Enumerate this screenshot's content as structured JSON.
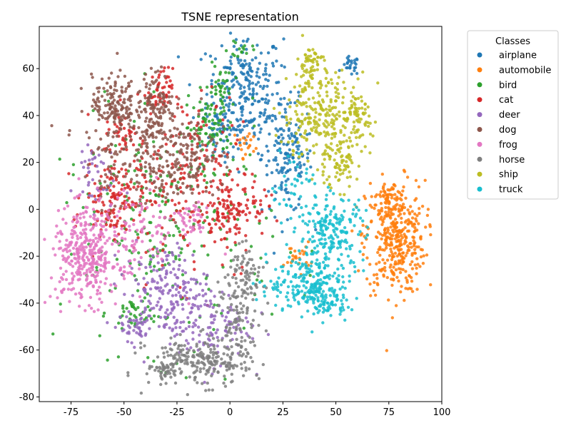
{
  "chart_data": {
    "type": "scatter",
    "title": "TSNE representation",
    "xlabel": "",
    "ylabel": "",
    "xlim": [
      -90,
      100
    ],
    "ylim": [
      -82,
      78
    ],
    "xticks": [
      -75,
      -50,
      -25,
      0,
      25,
      50,
      75,
      100
    ],
    "yticks": [
      -80,
      -60,
      -40,
      -20,
      0,
      20,
      40,
      60
    ],
    "grid": false,
    "legend": {
      "title": "Classes",
      "placement": "outside-top-right"
    },
    "series": [
      {
        "name": "airplane",
        "color": "#1f77b4",
        "clusters": [
          {
            "cx": 7,
            "cy": 50,
            "sx": 9,
            "sy": 13,
            "n": 260
          },
          {
            "cx": 27,
            "cy": 22,
            "sx": 6,
            "sy": 12,
            "n": 150
          },
          {
            "cx": 57,
            "cy": 61,
            "sx": 2,
            "sy": 2,
            "n": 25
          },
          {
            "cx": -3,
            "cy": 33,
            "sx": 5,
            "sy": 6,
            "n": 40
          }
        ]
      },
      {
        "name": "automobile",
        "color": "#ff7f0e",
        "clusters": [
          {
            "cx": 78,
            "cy": -12,
            "sx": 7,
            "sy": 12,
            "n": 400
          },
          {
            "cx": 75,
            "cy": 5,
            "sx": 3,
            "sy": 3,
            "n": 30
          },
          {
            "cx": 32,
            "cy": -20,
            "sx": 3,
            "sy": 3,
            "n": 25
          },
          {
            "cx": 8,
            "cy": 28,
            "sx": 3,
            "sy": 3,
            "n": 20
          }
        ]
      },
      {
        "name": "bird",
        "color": "#2ca02c",
        "clusters": [
          {
            "cx": -5,
            "cy": 50,
            "sx": 3,
            "sy": 5,
            "n": 40
          },
          {
            "cx": -10,
            "cy": 35,
            "sx": 6,
            "sy": 6,
            "n": 70
          },
          {
            "cx": -30,
            "cy": -10,
            "sx": 25,
            "sy": 25,
            "n": 260
          },
          {
            "cx": -45,
            "cy": -45,
            "sx": 5,
            "sy": 4,
            "n": 35
          },
          {
            "cx": 5,
            "cy": 68,
            "sx": 3,
            "sy": 2,
            "n": 15
          }
        ]
      },
      {
        "name": "cat",
        "color": "#d62728",
        "clusters": [
          {
            "cx": -55,
            "cy": 5,
            "sx": 7,
            "sy": 8,
            "n": 140
          },
          {
            "cx": -33,
            "cy": 50,
            "sx": 3,
            "sy": 5,
            "n": 50
          },
          {
            "cx": -15,
            "cy": 10,
            "sx": 15,
            "sy": 20,
            "n": 220
          },
          {
            "cx": -50,
            "cy": 32,
            "sx": 5,
            "sy": 4,
            "n": 40
          },
          {
            "cx": 3,
            "cy": 0,
            "sx": 7,
            "sy": 6,
            "n": 80
          }
        ]
      },
      {
        "name": "deer",
        "color": "#9467bd",
        "clusters": [
          {
            "cx": -30,
            "cy": -35,
            "sx": 10,
            "sy": 10,
            "n": 180
          },
          {
            "cx": -10,
            "cy": -50,
            "sx": 10,
            "sy": 8,
            "n": 110
          },
          {
            "cx": -65,
            "cy": 15,
            "sx": 5,
            "sy": 8,
            "n": 40
          },
          {
            "cx": -45,
            "cy": -50,
            "sx": 4,
            "sy": 3,
            "n": 40
          }
        ]
      },
      {
        "name": "dog",
        "color": "#8c564b",
        "clusters": [
          {
            "cx": -55,
            "cy": 45,
            "sx": 5,
            "sy": 6,
            "n": 130
          },
          {
            "cx": -35,
            "cy": 45,
            "sx": 4,
            "sy": 7,
            "n": 100
          },
          {
            "cx": -40,
            "cy": 25,
            "sx": 15,
            "sy": 12,
            "n": 220
          },
          {
            "cx": -20,
            "cy": 20,
            "sx": 8,
            "sy": 10,
            "n": 90
          }
        ]
      },
      {
        "name": "frog",
        "color": "#e377c2",
        "clusters": [
          {
            "cx": -68,
            "cy": -20,
            "sx": 8,
            "sy": 10,
            "n": 360
          },
          {
            "cx": -18,
            "cy": -5,
            "sx": 4,
            "sy": 4,
            "n": 40
          },
          {
            "cx": -45,
            "cy": -10,
            "sx": 10,
            "sy": 10,
            "n": 90
          }
        ]
      },
      {
        "name": "horse",
        "color": "#7f7f7f",
        "clusters": [
          {
            "cx": -15,
            "cy": -65,
            "sx": 12,
            "sy": 5,
            "n": 240
          },
          {
            "cx": 5,
            "cy": -45,
            "sx": 5,
            "sy": 10,
            "n": 110
          },
          {
            "cx": 8,
            "cy": -25,
            "sx": 4,
            "sy": 6,
            "n": 50
          },
          {
            "cx": -30,
            "cy": -70,
            "sx": 2,
            "sy": 2,
            "n": 25
          }
        ]
      },
      {
        "name": "ship",
        "color": "#bcbd22",
        "clusters": [
          {
            "cx": 45,
            "cy": 40,
            "sx": 10,
            "sy": 10,
            "n": 280
          },
          {
            "cx": 38,
            "cy": 62,
            "sx": 3,
            "sy": 4,
            "n": 55
          },
          {
            "cx": 50,
            "cy": 18,
            "sx": 5,
            "sy": 5,
            "n": 60
          },
          {
            "cx": 60,
            "cy": 38,
            "sx": 3,
            "sy": 5,
            "n": 40
          }
        ]
      },
      {
        "name": "truck",
        "color": "#17becf",
        "clusters": [
          {
            "cx": 48,
            "cy": -10,
            "sx": 8,
            "sy": 8,
            "n": 200
          },
          {
            "cx": 38,
            "cy": -32,
            "sx": 10,
            "sy": 6,
            "n": 220
          },
          {
            "cx": 47,
            "cy": -40,
            "sx": 4,
            "sy": 3,
            "n": 50
          },
          {
            "cx": 30,
            "cy": 10,
            "sx": 6,
            "sy": 8,
            "n": 40
          }
        ]
      }
    ]
  }
}
